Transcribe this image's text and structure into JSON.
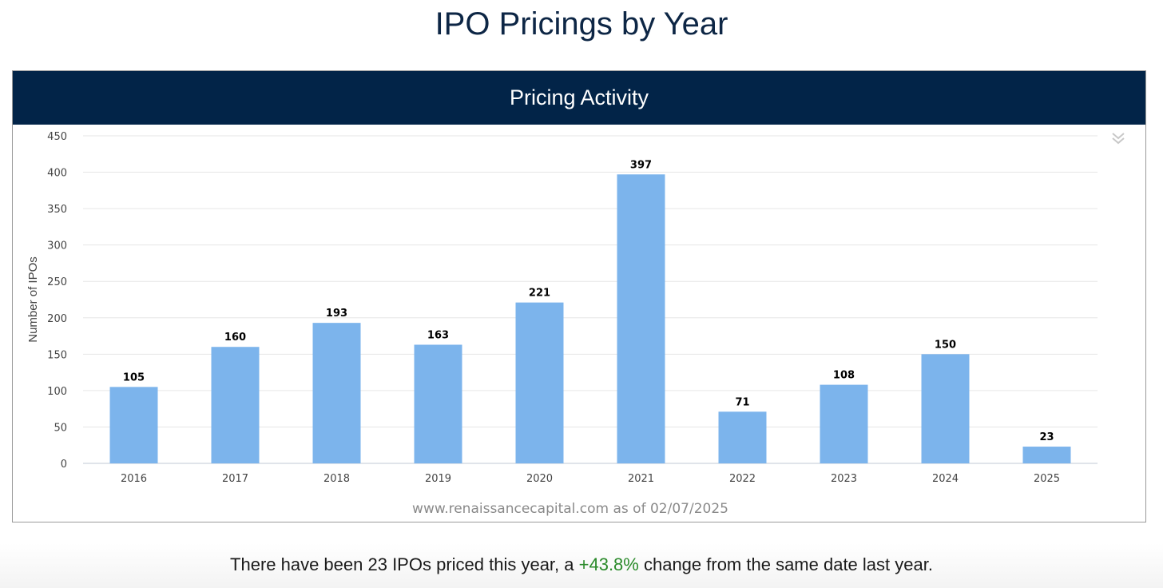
{
  "page": {
    "title": "IPO Pricings by Year"
  },
  "chart_panel": {
    "header": "Pricing Activity",
    "source_credit": "www.renaissancecapital.com as of 02/07/2025",
    "collapse_icon": "double-chevron-down-icon"
  },
  "summary": {
    "prefix": "There have been 23 IPOs priced this year, a ",
    "change": "+43.8%",
    "suffix": " change from the same date last year.",
    "change_color": "#2a8a2a"
  },
  "chart_data": {
    "type": "bar",
    "categories": [
      "2016",
      "2017",
      "2018",
      "2019",
      "2020",
      "2021",
      "2022",
      "2023",
      "2024",
      "2025"
    ],
    "values": [
      105,
      160,
      193,
      163,
      221,
      397,
      71,
      108,
      150,
      23
    ],
    "ylabel": "Number of IPOs",
    "xlabel": "",
    "ylim": [
      0,
      450
    ],
    "yticks": [
      0,
      50,
      100,
      150,
      200,
      250,
      300,
      350,
      400,
      450
    ],
    "bar_color": "#7cb4ec",
    "grid": true,
    "data_labels": true
  }
}
